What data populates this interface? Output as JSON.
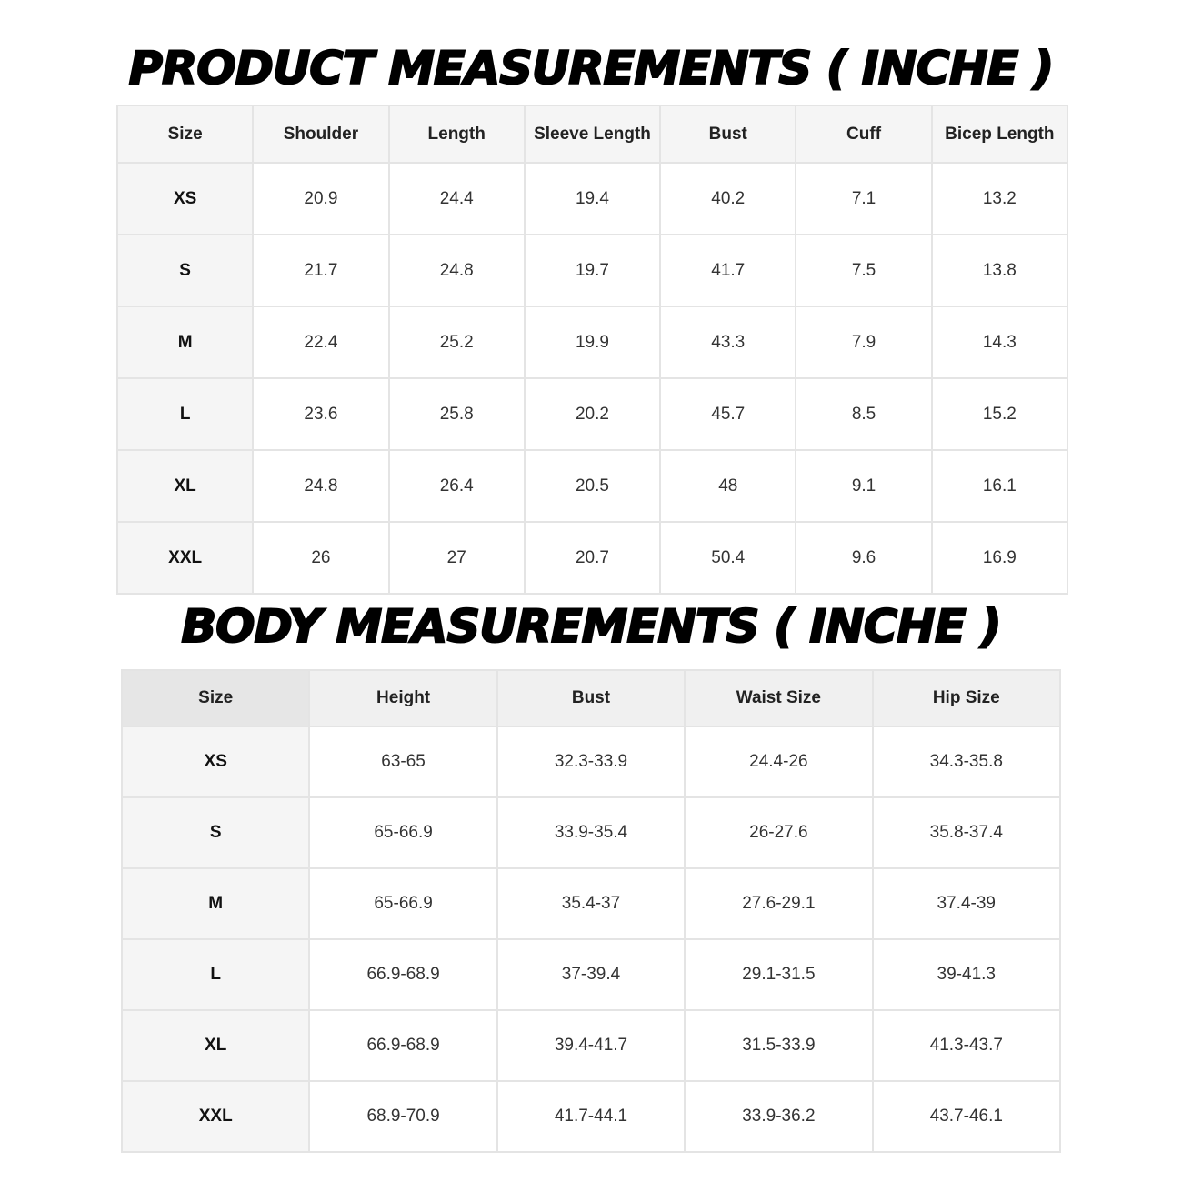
{
  "product": {
    "title": "PRODUCT MEASUREMENTS ( INCHE )",
    "headers": [
      "Size",
      "Shoulder",
      "Length",
      "Sleeve Length",
      "Bust",
      "Cuff",
      "Bicep Length"
    ],
    "rows": [
      [
        "XS",
        "20.9",
        "24.4",
        "19.4",
        "40.2",
        "7.1",
        "13.2"
      ],
      [
        "S",
        "21.7",
        "24.8",
        "19.7",
        "41.7",
        "7.5",
        "13.8"
      ],
      [
        "M",
        "22.4",
        "25.2",
        "19.9",
        "43.3",
        "7.9",
        "14.3"
      ],
      [
        "L",
        "23.6",
        "25.8",
        "20.2",
        "45.7",
        "8.5",
        "15.2"
      ],
      [
        "XL",
        "24.8",
        "26.4",
        "20.5",
        "48",
        "9.1",
        "16.1"
      ],
      [
        "XXL",
        "26",
        "27",
        "20.7",
        "50.4",
        "9.6",
        "16.9"
      ]
    ]
  },
  "body": {
    "title": "BODY MEASUREMENTS ( INCHE )",
    "headers": [
      "Size",
      "Height",
      "Bust",
      "Waist Size",
      "Hip Size"
    ],
    "rows": [
      [
        "XS",
        "63-65",
        "32.3-33.9",
        "24.4-26",
        "34.3-35.8"
      ],
      [
        "S",
        "65-66.9",
        "33.9-35.4",
        "26-27.6",
        "35.8-37.4"
      ],
      [
        "M",
        "65-66.9",
        "35.4-37",
        "27.6-29.1",
        "37.4-39"
      ],
      [
        "L",
        "66.9-68.9",
        "37-39.4",
        "29.1-31.5",
        "39-41.3"
      ],
      [
        "XL",
        "66.9-68.9",
        "39.4-41.7",
        "31.5-33.9",
        "41.3-43.7"
      ],
      [
        "XXL",
        "68.9-70.9",
        "41.7-44.1",
        "33.9-36.2",
        "43.7-46.1"
      ]
    ]
  }
}
